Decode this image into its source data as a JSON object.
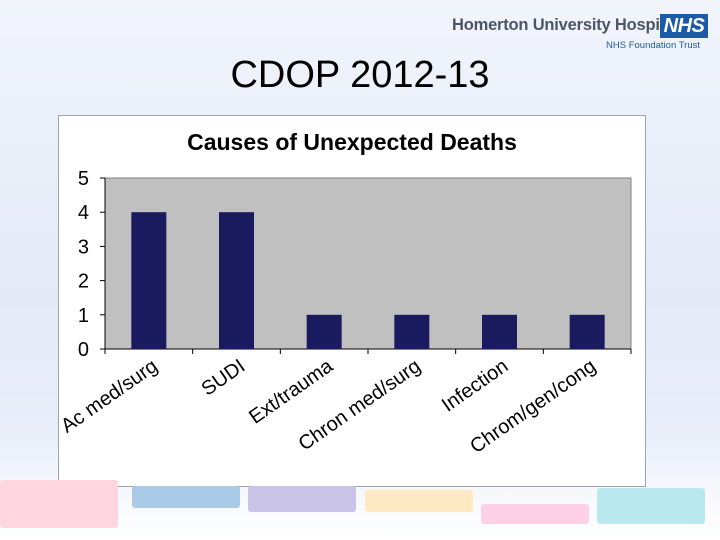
{
  "header": {
    "org_name": "Homerton University Hospital",
    "nhs_badge": "NHS",
    "trust_name": "NHS Foundation Trust"
  },
  "slide": {
    "title": "CDOP 2012-13"
  },
  "chart_data": {
    "type": "bar",
    "title": "Causes of Unexpected Deaths",
    "categories": [
      "Ac med/surg",
      "SUDI",
      "Ext/trauma",
      "Chron med/surg",
      "Infection",
      "Chrom/gen/cong"
    ],
    "values": [
      4,
      4,
      1,
      1,
      1,
      1
    ],
    "xlabel": "",
    "ylabel": "",
    "ylim": [
      0,
      5
    ],
    "yticks": [
      "0",
      "1",
      "2",
      "3",
      "4",
      "5"
    ],
    "grid": false,
    "legend": "none",
    "bar_color": "#1a1a5e",
    "plot_bg": "#c0c0c0"
  },
  "colors": {
    "brand_blue": "#1c5aa8",
    "bottom_bars": [
      "#ffd6e0",
      "#a9cbe8",
      "#c9c3e8",
      "#ffe9c2",
      "#ffd0e6",
      "#b9e8ef"
    ]
  }
}
